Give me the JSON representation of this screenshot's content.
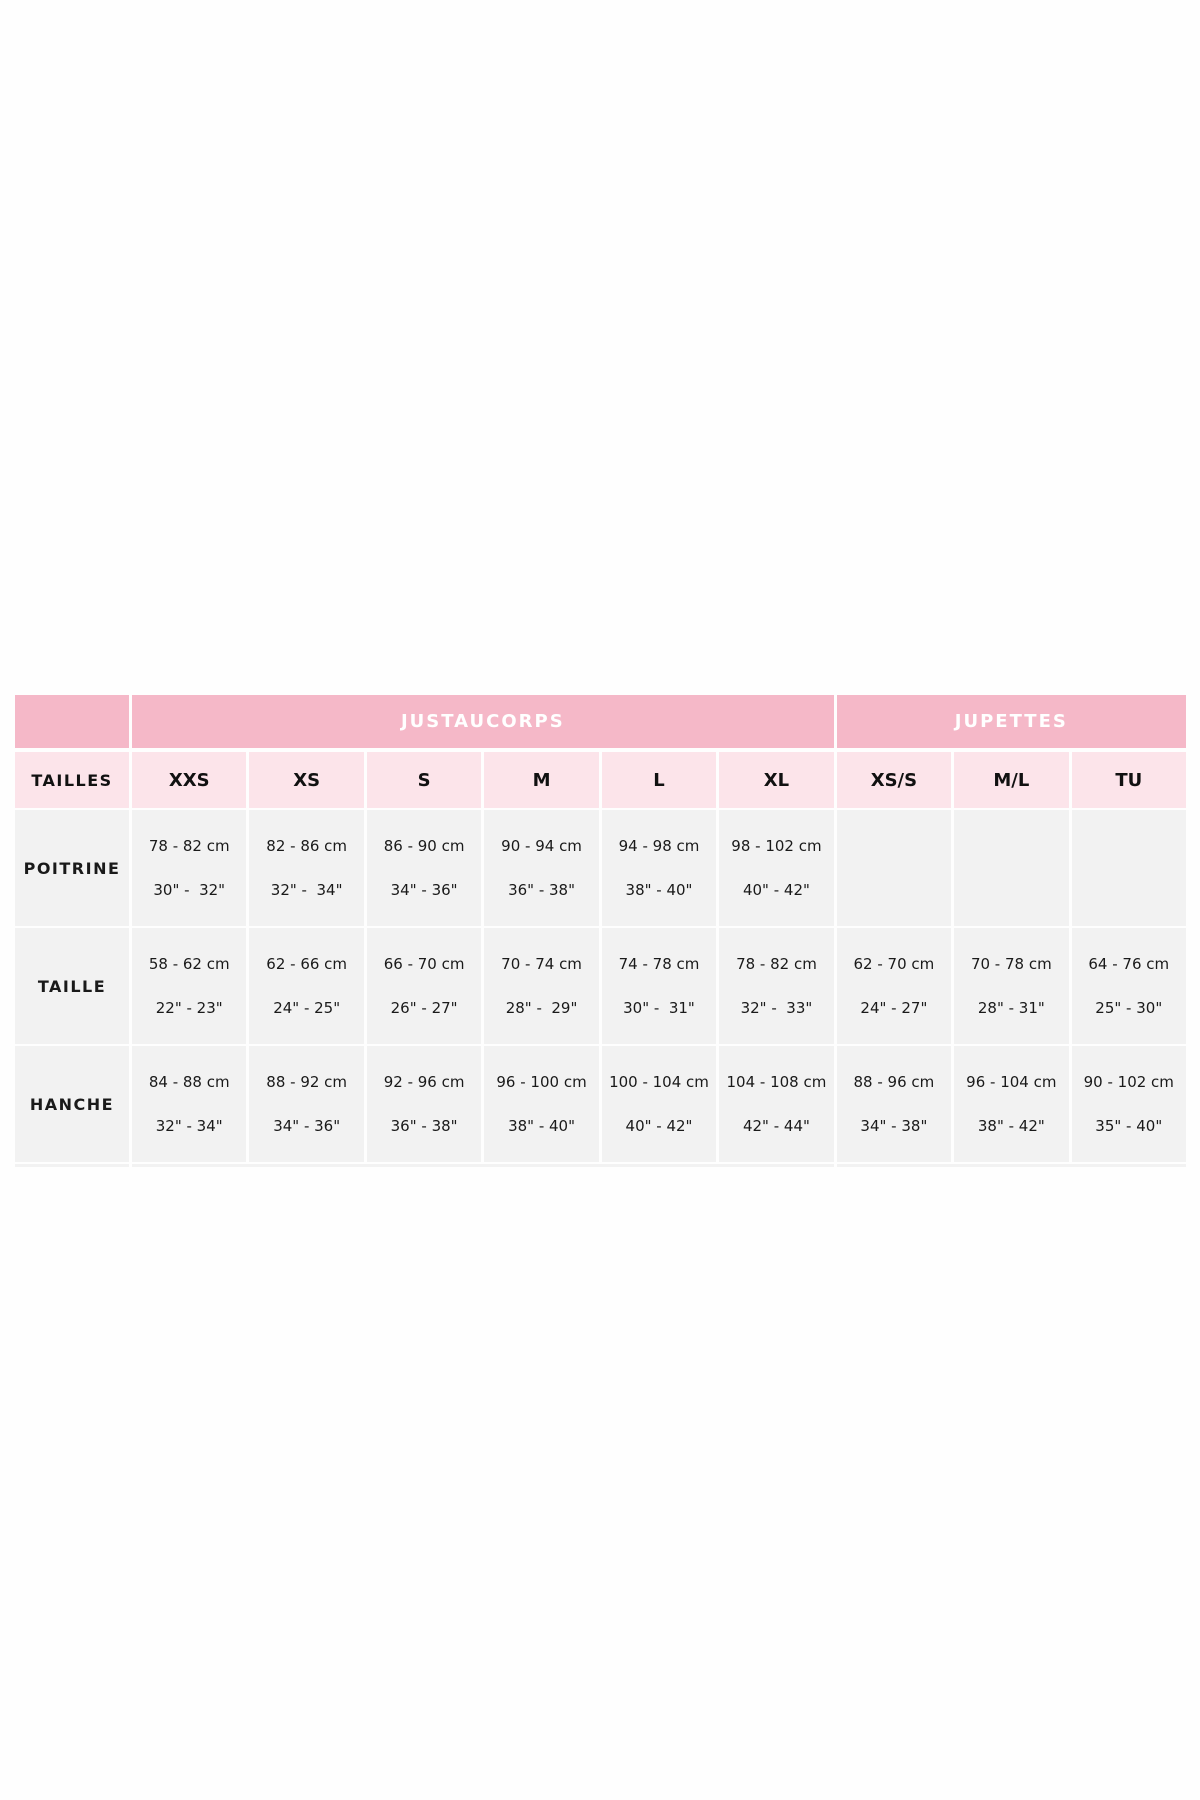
{
  "groups": [
    {
      "label": "",
      "span": 1
    },
    {
      "label": "JUSTAUCORPS",
      "span": 6
    },
    {
      "label": "JUPETTES",
      "span": 3
    }
  ],
  "size_label": "TAILLES",
  "sizes": [
    "XXS",
    "XS",
    "S",
    "M",
    "L",
    "XL",
    "XS/S",
    "M/L",
    "TU"
  ],
  "rows": [
    {
      "label": "POITRINE",
      "cells": [
        [
          "78 - 82 cm",
          "30\" -  32\""
        ],
        [
          "82 - 86 cm",
          "32\" -  34\""
        ],
        [
          "86 - 90 cm",
          "34\" - 36\""
        ],
        [
          "90 - 94 cm",
          "36\" - 38\""
        ],
        [
          "94 - 98 cm",
          "38\" - 40\""
        ],
        [
          "98 - 102 cm",
          "40\" - 42\""
        ],
        [
          "",
          ""
        ],
        [
          "",
          ""
        ],
        [
          "",
          ""
        ]
      ]
    },
    {
      "label": "TAILLE",
      "cells": [
        [
          "58 - 62 cm",
          "22\" - 23\""
        ],
        [
          "62 - 66 cm",
          "24\" - 25\""
        ],
        [
          "66 - 70 cm",
          "26\" - 27\""
        ],
        [
          "70 - 74 cm",
          "28\" -  29\""
        ],
        [
          "74 - 78 cm",
          "30\" -  31\""
        ],
        [
          "78 - 82 cm",
          "32\" -  33\""
        ],
        [
          "62 - 70 cm",
          "24\" - 27\""
        ],
        [
          "70 - 78 cm",
          "28\" - 31\""
        ],
        [
          "64 - 76 cm",
          "25\" - 30\""
        ]
      ]
    },
    {
      "label": "HANCHE",
      "cells": [
        [
          "84 - 88 cm",
          "32\" - 34\""
        ],
        [
          "88 - 92 cm",
          "34\" - 36\""
        ],
        [
          "92 - 96 cm",
          "36\" - 38\""
        ],
        [
          "96 - 100 cm",
          "38\" - 40\""
        ],
        [
          "100 - 104 cm",
          "40\" - 42\""
        ],
        [
          "104 - 108 cm",
          "42\" - 44\""
        ],
        [
          "88 - 96 cm",
          "34\" - 38\""
        ],
        [
          "96 - 104 cm",
          "38\" - 42\""
        ],
        [
          "90 - 102 cm",
          "35\" - 40\""
        ]
      ]
    }
  ],
  "colors": {
    "header": "#f5b8c8",
    "sizes_row": "#fce4ea",
    "body": "#f2f2f2"
  }
}
